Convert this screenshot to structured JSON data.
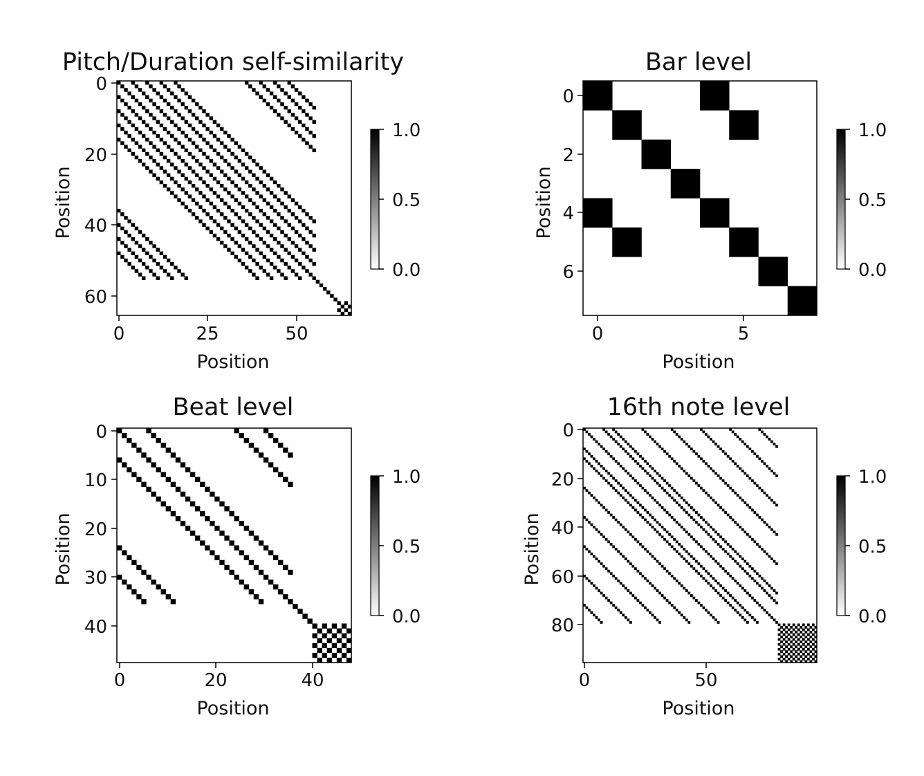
{
  "figure": {
    "panels": [
      {
        "title": "Pitch/Duration self-similarity",
        "xlabel": "Position",
        "ylabel": "Position",
        "xticks": [
          "0",
          "25",
          "50"
        ],
        "yticks": [
          "0",
          "20",
          "40",
          "60"
        ],
        "colorbar_ticks": [
          "0.0",
          "0.5",
          "1.0"
        ]
      },
      {
        "title": "Bar level",
        "xlabel": "Position",
        "ylabel": "Position",
        "xticks": [
          "0",
          "5"
        ],
        "yticks": [
          "0",
          "2",
          "4",
          "6"
        ],
        "colorbar_ticks": [
          "0.0",
          "0.5",
          "1.0"
        ]
      },
      {
        "title": "Beat level",
        "xlabel": "Position",
        "ylabel": "Position",
        "xticks": [
          "0",
          "20",
          "40"
        ],
        "yticks": [
          "0",
          "10",
          "20",
          "30",
          "40"
        ],
        "colorbar_ticks": [
          "0.0",
          "0.5",
          "1.0"
        ]
      },
      {
        "title": "16th note level",
        "xlabel": "Position",
        "ylabel": "Position",
        "xticks": [
          "0",
          "50"
        ],
        "yticks": [
          "0",
          "20",
          "40",
          "60",
          "80"
        ],
        "colorbar_ticks": [
          "0.0",
          "0.5",
          "1.0"
        ]
      }
    ]
  },
  "chart_data": [
    {
      "type": "heatmap",
      "title": "Pitch/Duration self-similarity",
      "xlabel": "Position",
      "ylabel": "Position",
      "size": 66,
      "xlim": [
        -0.5,
        65.5
      ],
      "ylim": [
        65.5,
        -0.5
      ],
      "colormap": "binary",
      "clim": [
        0.0,
        1.0
      ],
      "colorbar_ticks": [
        0.0,
        0.5,
        1.0
      ],
      "x_ticks": [
        0,
        25,
        50
      ],
      "y_ticks": [
        0,
        20,
        40,
        60
      ],
      "pattern": {
        "diagonal": true,
        "repeat_offsets": [
          4,
          8,
          12,
          16,
          36,
          40,
          44,
          48
        ],
        "repeat_extent": 56,
        "tail_block": [
          62,
          65
        ]
      }
    },
    {
      "type": "heatmap",
      "title": "Bar level",
      "xlabel": "Position",
      "ylabel": "Position",
      "size": 8,
      "xlim": [
        -0.5,
        7.5
      ],
      "ylim": [
        7.5,
        -0.5
      ],
      "colormap": "binary",
      "clim": [
        0.0,
        1.0
      ],
      "colorbar_ticks": [
        0.0,
        0.5,
        1.0
      ],
      "x_ticks": [
        0,
        5
      ],
      "y_ticks": [
        0,
        2,
        4,
        6
      ],
      "matrix": [
        [
          1,
          0,
          0,
          0,
          1,
          0,
          0,
          0
        ],
        [
          0,
          1,
          0,
          0,
          0,
          1,
          0,
          0
        ],
        [
          0,
          0,
          1,
          0,
          0,
          0,
          0,
          0
        ],
        [
          0,
          0,
          0,
          1,
          0,
          0,
          0,
          0
        ],
        [
          1,
          0,
          0,
          0,
          1,
          0,
          0,
          0
        ],
        [
          0,
          1,
          0,
          0,
          0,
          1,
          0,
          0
        ],
        [
          0,
          0,
          0,
          0,
          0,
          0,
          1,
          0
        ],
        [
          0,
          0,
          0,
          0,
          0,
          0,
          0,
          1
        ]
      ]
    },
    {
      "type": "heatmap",
      "title": "Beat level",
      "xlabel": "Position",
      "ylabel": "Position",
      "size": 48,
      "xlim": [
        -0.5,
        47.5
      ],
      "ylim": [
        47.5,
        -0.5
      ],
      "colormap": "binary",
      "clim": [
        0.0,
        1.0
      ],
      "colorbar_ticks": [
        0.0,
        0.5,
        1.0
      ],
      "x_ticks": [
        0,
        20,
        40
      ],
      "y_ticks": [
        0,
        10,
        20,
        30,
        40
      ],
      "pattern": {
        "diagonal": true,
        "repeat_offsets": [
          6,
          24,
          30
        ],
        "repeat_extent": 36,
        "tail_block": [
          40,
          47
        ]
      }
    },
    {
      "type": "heatmap",
      "title": "16th note level",
      "xlabel": "Position",
      "ylabel": "Position",
      "size": 96,
      "xlim": [
        -0.5,
        95.5
      ],
      "ylim": [
        95.5,
        -0.5
      ],
      "colormap": "binary",
      "clim": [
        0.0,
        1.0
      ],
      "colorbar_ticks": [
        0.0,
        0.5,
        1.0
      ],
      "x_ticks": [
        0,
        50
      ],
      "y_ticks": [
        0,
        20,
        40,
        60,
        80
      ],
      "pattern": {
        "diagonal": true,
        "repeat_offsets": [
          8,
          12,
          24,
          36,
          48,
          60,
          72
        ],
        "repeat_extent": 80,
        "tail_block": [
          80,
          95
        ]
      }
    }
  ]
}
